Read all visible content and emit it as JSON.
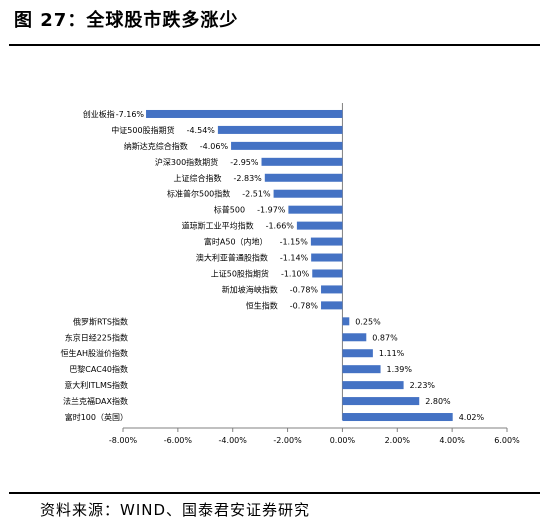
{
  "title": "图 27：全球股市跌多涨少",
  "source": "资料来源：WIND、国泰君安证券研究",
  "colors": {
    "bar": "#4472C4",
    "axis": "#808080",
    "text": "#000000"
  },
  "chart_data": {
    "type": "bar",
    "orientation": "horizontal",
    "categories": [
      "创业板指",
      "中证500股指期货",
      "纳斯达克综合指数",
      "沪深300指数期货",
      "上证综合指数",
      "标准普尔500指数",
      "标普500",
      "道琼斯工业平均指数",
      "富时A50（内地）",
      "澳大利亚普通股指数",
      "上证50股指期货",
      "新加坡海峡指数",
      "恒生指数",
      "俄罗斯RTS指数",
      "东京日经225指数",
      "恒生AH股溢价指数",
      "巴黎CAC40指数",
      "意大利ITLMS指数",
      "法兰克福DAX指数",
      "富时100（英国）"
    ],
    "values": [
      -7.16,
      -4.54,
      -4.06,
      -2.95,
      -2.83,
      -2.51,
      -1.97,
      -1.66,
      -1.15,
      -1.14,
      -1.1,
      -0.78,
      -0.78,
      0.25,
      0.87,
      1.11,
      1.39,
      2.23,
      2.8,
      4.02
    ],
    "value_labels": [
      "-7.16%",
      "-4.54%",
      "-4.06%",
      "-2.95%",
      "-2.83%",
      "-2.51%",
      "-1.97%",
      "-1.66%",
      "-1.15%",
      "-1.14%",
      "-1.10%",
      "-0.78%",
      "-0.78%",
      "0.25%",
      "0.87%",
      "1.11%",
      "1.39%",
      "2.23%",
      "2.80%",
      "4.02%"
    ],
    "xlim": [
      -8,
      6
    ],
    "xticks": [
      -8,
      -6,
      -4,
      -2,
      0,
      2,
      4,
      6
    ],
    "xtick_labels": [
      "-8.00%",
      "-6.00%",
      "-4.00%",
      "-2.00%",
      "0.00%",
      "2.00%",
      "4.00%",
      "6.00%"
    ],
    "grid": false,
    "legend": "none"
  }
}
